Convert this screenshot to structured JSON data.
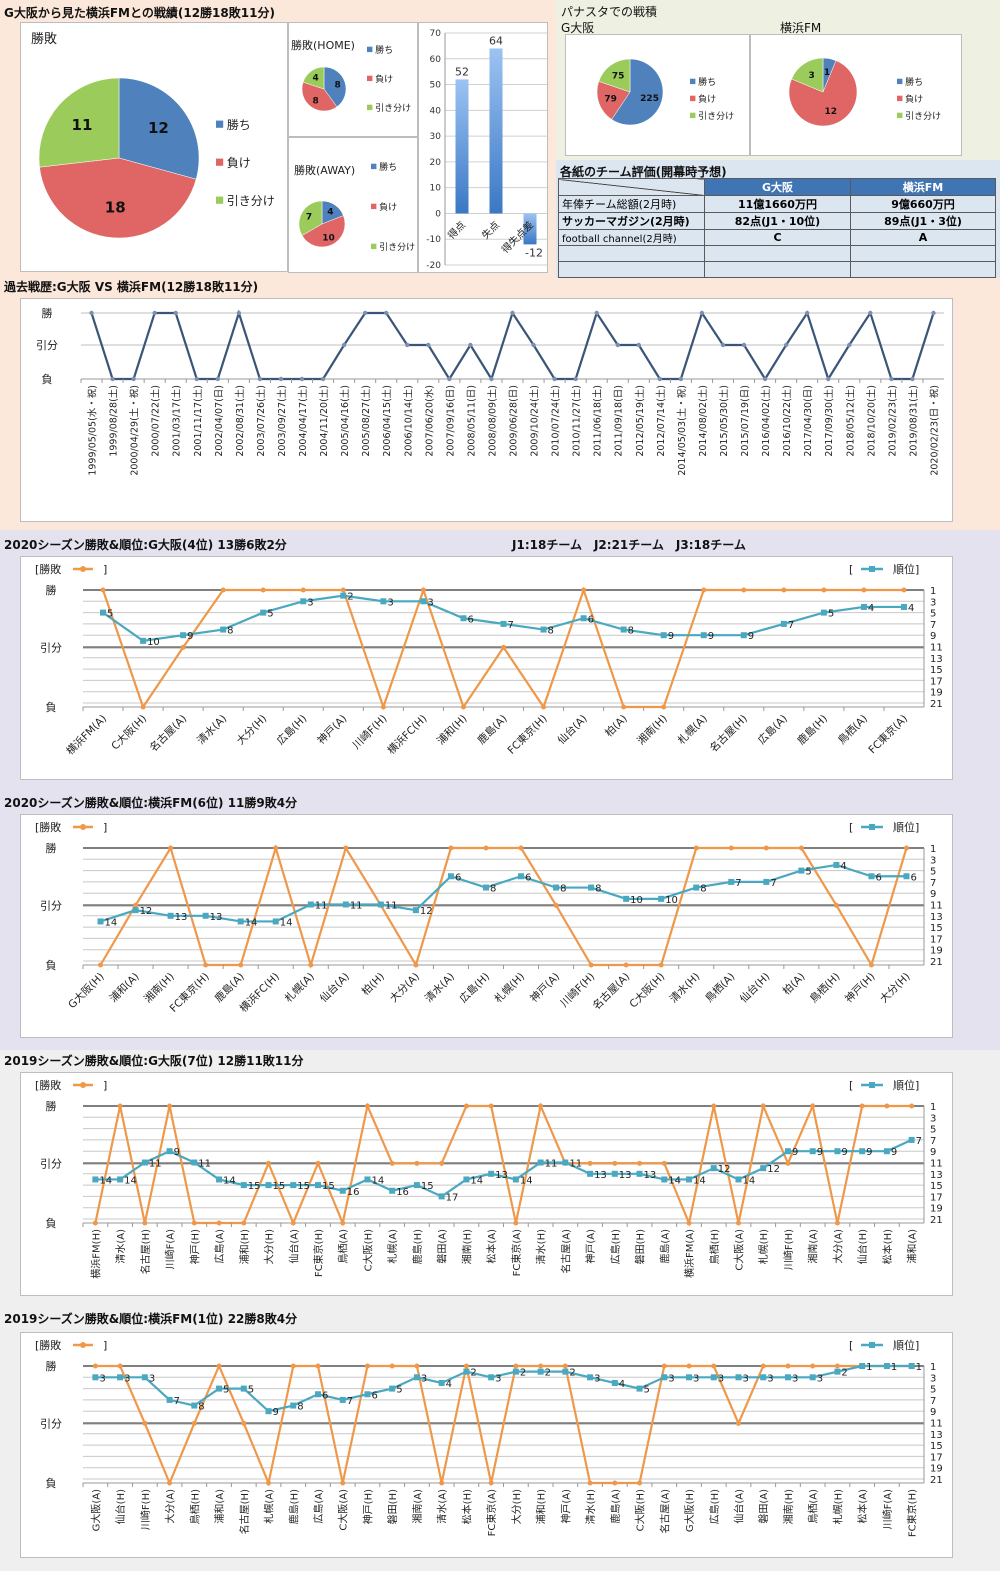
{
  "colors": {
    "win": "#4f81bd",
    "loss": "#e06666",
    "draw": "#9bcb5b",
    "result_line": "#f0984a",
    "rank_line": "#4aa8c0",
    "history_line": "#3b5578",
    "bg_top": "#fbe8da",
    "bg_2020": "#e4e2ee",
    "bg_2019": "#efefef",
    "table_header": "#3f74b5",
    "table_cell": "#dce6f1"
  },
  "head_to_head": {
    "title": "G大阪から見た横浜FMとの戦績(12勝18敗11分)",
    "legend": [
      "勝ち",
      "負け",
      "引き分け"
    ],
    "overall": {
      "title": "勝敗",
      "values": [
        12,
        18,
        11
      ]
    },
    "home": {
      "title": "勝敗(HOME)",
      "values": [
        8,
        8,
        4
      ]
    },
    "away": {
      "title": "勝敗(AWAY)",
      "values": [
        4,
        10,
        7
      ]
    },
    "goals": {
      "categories": [
        "得点",
        "失点",
        "得失点差"
      ],
      "values": [
        52,
        64,
        -12
      ],
      "ylim": [
        -20,
        70
      ],
      "ticks": [
        70,
        60,
        50,
        40,
        30,
        20,
        10,
        0,
        -10,
        -20
      ]
    }
  },
  "panasta": {
    "title": "パナスタでの戦積",
    "legend": [
      "勝ち",
      "負け",
      "引き分け"
    ],
    "gosaka": {
      "label": "G大阪",
      "values": [
        225,
        79,
        75
      ]
    },
    "yokohama": {
      "label": "横浜FM",
      "values": [
        1,
        12,
        3
      ]
    }
  },
  "evaluation": {
    "title": "各紙のチーム評価(開幕時予想)",
    "headers": [
      "",
      "G大阪",
      "横浜FM"
    ],
    "rows": [
      [
        "年俸チーム総額(2月時)",
        "11億1660万円",
        "9億660万円"
      ],
      [
        "サッカーマガジン(2月時)",
        "82点(J1・10位)",
        "89点(J1・3位)"
      ],
      [
        "football channel(2月時)",
        "C",
        "A"
      ],
      [
        "",
        "",
        ""
      ],
      [
        "",
        "",
        ""
      ]
    ]
  },
  "history": {
    "title": "過去戦歴:G大阪 VS 横浜FM(12勝18敗11分)",
    "ylabels": [
      "勝",
      "引分",
      "負"
    ],
    "dates": [
      "1999/05/05(水・祝)",
      "1999/08/28(土)",
      "2000/04/29(土・祝)",
      "2000/07/22(土)",
      "2001/03/17(土)",
      "2001/11/17(土)",
      "2002/04/07(日)",
      "2002/08/31(土)",
      "2003/07/26(土)",
      "2003/09/27(土)",
      "2004/04/17(土)",
      "2004/11/20(土)",
      "2005/04/16(土)",
      "2005/08/27(土)",
      "2006/04/15(土)",
      "2006/10/14(土)",
      "2007/06/20(水)",
      "2007/09/16(日)",
      "2008/05/11(日)",
      "2008/08/09(土)",
      "2009/06/28(日)",
      "2009/10/24(土)",
      "2010/07/24(土)",
      "2010/11/27(土)",
      "2011/06/18(土)",
      "2011/09/18(日)",
      "2012/05/19(土)",
      "2012/07/14(土)",
      "2014/05/03(土・祝)",
      "2014/08/02(土)",
      "2015/05/30(土)",
      "2015/07/19(日)",
      "2016/04/02(土)",
      "2016/10/22(土)",
      "2017/04/30(日)",
      "2017/09/30(土)",
      "2018/05/12(土)",
      "2018/10/20(土)",
      "2019/02/23(土)",
      "2019/08/31(土)",
      "2020/02/23(日・祝)"
    ],
    "results": [
      "W",
      "L",
      "L",
      "W",
      "W",
      "L",
      "L",
      "W",
      "L",
      "L",
      "L",
      "L",
      "D",
      "W",
      "W",
      "D",
      "D",
      "L",
      "D",
      "L",
      "W",
      "D",
      "L",
      "L",
      "W",
      "D",
      "D",
      "L",
      "L",
      "W",
      "D",
      "D",
      "L",
      "D",
      "W",
      "L",
      "D",
      "W",
      "L",
      "L",
      "W"
    ]
  },
  "season_charts": [
    {
      "title": "2020シーズン勝敗&順位:G大阪(4位) 13勝6敗2分",
      "note": "J1:18チーム　J2:21チーム　J3:18チーム",
      "legend_result": "[勝敗",
      "legend_rank": "順位]",
      "ylabels": [
        "勝",
        "引分",
        "負"
      ],
      "rank_ticks": [
        1,
        3,
        5,
        7,
        9,
        11,
        13,
        15,
        17,
        19,
        21
      ],
      "opponents": [
        "横浜FM(A)",
        "C大阪(H)",
        "名古屋(A)",
        "清水(A)",
        "大分(H)",
        "広島(H)",
        "神戸(A)",
        "川崎F(H)",
        "横浜FC(H)",
        "浦和(H)",
        "鹿島(A)",
        "FC東京(H)",
        "仙台(A)",
        "柏(A)",
        "湘南(H)",
        "札幌(A)",
        "名古屋(H)",
        "広島(A)",
        "鹿島(H)",
        "鳥栖(A)",
        "FC東京(A)"
      ],
      "results": [
        "W",
        "L",
        "D",
        "W",
        "W",
        "W",
        "W",
        "L",
        "W",
        "L",
        "D",
        "L",
        "W",
        "L",
        "L",
        "W",
        "W",
        "W",
        "W",
        "W",
        "W"
      ],
      "ranks": [
        5,
        10,
        9,
        8,
        5,
        3,
        2,
        3,
        3,
        6,
        7,
        8,
        6,
        8,
        9,
        9,
        9,
        7,
        5,
        4,
        4
      ]
    },
    {
      "title": "2020シーズン勝敗&順位:横浜FM(6位) 11勝9敗4分",
      "note": "",
      "legend_result": "[勝敗",
      "legend_rank": "順位]",
      "ylabels": [
        "勝",
        "引分",
        "負"
      ],
      "rank_ticks": [
        1,
        3,
        5,
        7,
        9,
        11,
        13,
        15,
        17,
        19,
        21
      ],
      "opponents": [
        "G大阪(H)",
        "浦和(A)",
        "湘南(H)",
        "FC東京(H)",
        "鹿島(A)",
        "横浜FC(H)",
        "札幌(A)",
        "仙台(A)",
        "柏(H)",
        "大分(A)",
        "清水(A)",
        "広島(H)",
        "札幌(H)",
        "神戸(A)",
        "川崎F(H)",
        "名古屋(A)",
        "C大阪(H)",
        "清水(H)",
        "鳥栖(A)",
        "仙台(H)",
        "柏(A)",
        "鳥栖(H)",
        "神戸(H)",
        "大分(H)"
      ],
      "results": [
        "L",
        "D",
        "W",
        "L",
        "L",
        "W",
        "L",
        "W",
        "D",
        "L",
        "W",
        "W",
        "W",
        "D",
        "L",
        "L",
        "L",
        "W",
        "W",
        "W",
        "W",
        "D",
        "L",
        "W"
      ],
      "ranks": [
        14,
        12,
        13,
        13,
        14,
        14,
        11,
        11,
        11,
        12,
        6,
        8,
        6,
        8,
        8,
        10,
        10,
        8,
        7,
        7,
        5,
        4,
        6,
        6
      ]
    },
    {
      "title": "2019シーズン勝敗&順位:G大阪(7位) 12勝11敗11分",
      "note": "",
      "legend_result": "[勝敗",
      "legend_rank": "順位]",
      "ylabels": [
        "勝",
        "引分",
        "負"
      ],
      "rank_ticks": [
        1,
        3,
        5,
        7,
        9,
        11,
        13,
        15,
        17,
        19,
        21
      ],
      "opponents": [
        "横浜FM(H)",
        "清水(A)",
        "名古屋(H)",
        "川崎F(A)",
        "神戸(H)",
        "広島(A)",
        "浦和(H)",
        "大分(H)",
        "仙台(A)",
        "FC東京(H)",
        "鳥栖(A)",
        "C大阪(H)",
        "札幌(A)",
        "鹿島(H)",
        "磐田(A)",
        "湘南(H)",
        "松本(A)",
        "FC東京(A)",
        "清水(H)",
        "名古屋(A)",
        "神戸(A)",
        "広島(H)",
        "磐田(H)",
        "鹿島(A)",
        "横浜FM(A)",
        "鳥栖(H)",
        "C大阪(A)",
        "札幌(H)",
        "川崎F(H)",
        "湘南(A)",
        "大分(A)",
        "仙台(H)",
        "松本(H)",
        "浦和(A)"
      ],
      "results": [
        "L",
        "W",
        "L",
        "W",
        "L",
        "L",
        "L",
        "D",
        "L",
        "D",
        "L",
        "W",
        "D",
        "D",
        "D",
        "W",
        "W",
        "L",
        "W",
        "D",
        "D",
        "D",
        "D",
        "D",
        "L",
        "W",
        "L",
        "W",
        "D",
        "W",
        "L",
        "W",
        "W",
        "W"
      ],
      "ranks": [
        14,
        14,
        11,
        9,
        11,
        14,
        15,
        15,
        15,
        15,
        16,
        14,
        16,
        15,
        17,
        14,
        13,
        14,
        11,
        11,
        13,
        13,
        13,
        14,
        14,
        12,
        14,
        12,
        9,
        9,
        9,
        9,
        9,
        7
      ]
    },
    {
      "title": "2019シーズン勝敗&順位:横浜FM(1位) 22勝8敗4分",
      "note": "",
      "legend_result": "[勝敗",
      "legend_rank": "順位]",
      "ylabels": [
        "勝",
        "引分",
        "負"
      ],
      "rank_ticks": [
        1,
        3,
        5,
        7,
        9,
        11,
        13,
        15,
        17,
        19,
        21
      ],
      "opponents": [
        "G大阪(A)",
        "仙台(H)",
        "川崎F(H)",
        "大分(A)",
        "鳥栖(H)",
        "浦和(A)",
        "名古屋(H)",
        "札幌(A)",
        "鹿島(H)",
        "広島(A)",
        "C大阪(A)",
        "神戸(H)",
        "磐田(H)",
        "湘南(A)",
        "清水(A)",
        "松本(H)",
        "FC東京(A)",
        "大分(H)",
        "浦和(H)",
        "神戸(A)",
        "清水(H)",
        "鹿島(A)",
        "C大阪(H)",
        "名古屋(A)",
        "G大阪(H)",
        "広島(H)",
        "仙台(A)",
        "磐田(A)",
        "湘南(H)",
        "鳥栖(A)",
        "札幌(H)",
        "松本(A)",
        "川崎F(A)",
        "FC東京(H)"
      ],
      "results": [
        "W",
        "W",
        "D",
        "L",
        "D",
        "W",
        "D",
        "L",
        "W",
        "W",
        "L",
        "W",
        "W",
        "W",
        "L",
        "W",
        "L",
        "W",
        "W",
        "W",
        "L",
        "L",
        "L",
        "W",
        "W",
        "W",
        "D",
        "W",
        "W",
        "W",
        "W",
        "W",
        "W",
        "W"
      ],
      "ranks": [
        3,
        3,
        3,
        7,
        8,
        5,
        5,
        9,
        8,
        6,
        7,
        6,
        5,
        3,
        4,
        2,
        3,
        2,
        2,
        2,
        3,
        4,
        5,
        3,
        3,
        3,
        3,
        3,
        3,
        3,
        2,
        1,
        1,
        1
      ]
    }
  ]
}
